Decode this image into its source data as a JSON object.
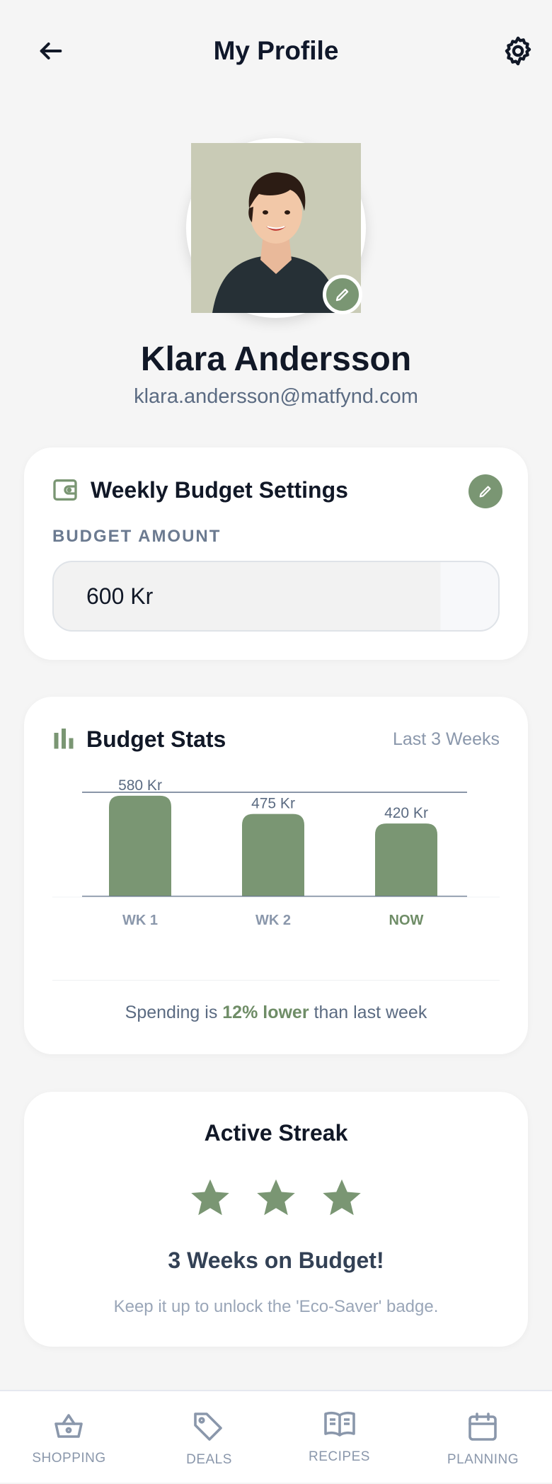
{
  "header": {
    "title": "My Profile",
    "back_icon": "arrow-left-icon",
    "settings_icon": "gear-icon"
  },
  "profile": {
    "name": "Klara Andersson",
    "email": "klara.andersson@matfynd.com"
  },
  "budget_settings": {
    "title": "Weekly Budget Settings",
    "label": "BUDGET AMOUNT",
    "amount": "600 Kr"
  },
  "budget_stats": {
    "title": "Budget Stats",
    "range": "Last 3 Weeks",
    "summary_prefix": "Spending is ",
    "summary_highlight": "12% lower",
    "summary_suffix": " than last week"
  },
  "chart_data": {
    "type": "bar",
    "categories": [
      "WK 1",
      "WK 2",
      "NOW"
    ],
    "values": [
      580,
      475,
      420
    ],
    "data_labels": [
      "580 Kr",
      "475 Kr",
      "420 Kr"
    ],
    "ylim": [
      0,
      600
    ],
    "highlight_category": "NOW",
    "colors": {
      "bar": "#7a9673",
      "label": "#8a97ab",
      "highlight_label": "#6f8d67"
    }
  },
  "streak": {
    "title": "Active Streak",
    "stars": 3,
    "headline": "3 Weeks on Budget!",
    "message": "Keep it up to unlock the 'Eco-Saver' badge."
  },
  "nav": {
    "items": [
      {
        "label": "SHOPPING",
        "icon": "basket-icon"
      },
      {
        "label": "DEALS",
        "icon": "tag-icon"
      },
      {
        "label": "RECIPES",
        "icon": "book-icon"
      },
      {
        "label": "PLANNING",
        "icon": "calendar-icon"
      }
    ]
  },
  "colors": {
    "accent": "#7a9673",
    "background": "#f5f5f5",
    "card": "#ffffff"
  }
}
